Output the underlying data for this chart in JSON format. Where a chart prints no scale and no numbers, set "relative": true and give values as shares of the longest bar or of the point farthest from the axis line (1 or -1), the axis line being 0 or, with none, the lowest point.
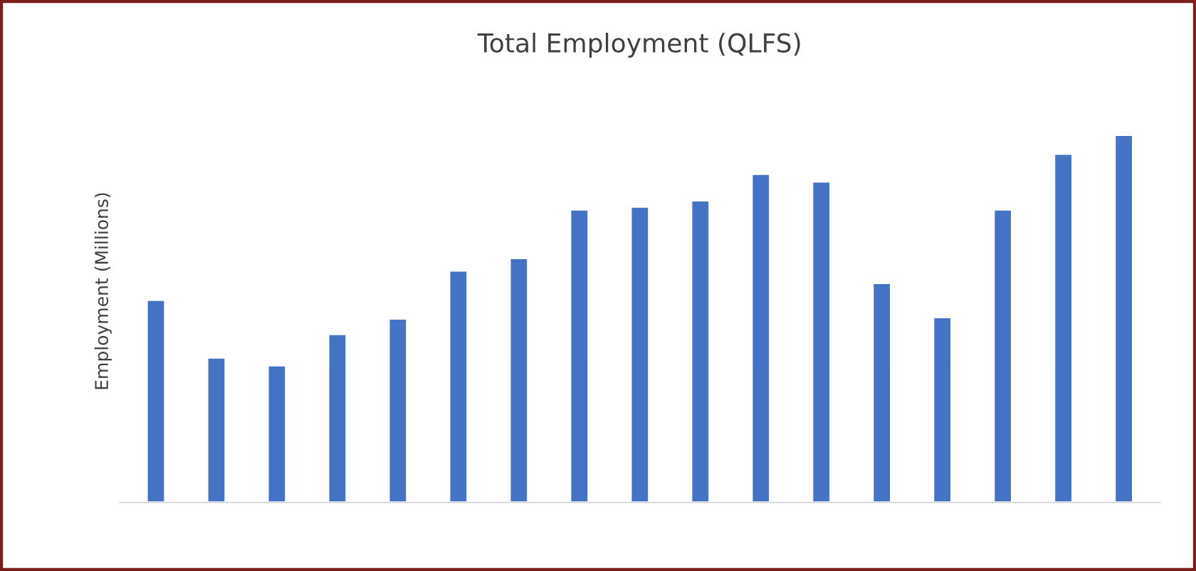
{
  "chart_data": {
    "type": "bar",
    "title": "Total Employment (QLFS)",
    "ylabel": "Employment (Millions)",
    "relative": true,
    "categories": [
      null,
      null,
      null,
      null,
      null,
      null,
      null,
      null,
      null,
      null,
      null,
      null,
      null,
      null,
      null,
      null,
      null
    ],
    "values": [
      0.551,
      0.394,
      0.373,
      0.458,
      0.5,
      0.631,
      0.665,
      0.797,
      0.805,
      0.822,
      0.894,
      0.873,
      0.597,
      0.504,
      0.797,
      0.949,
      1
    ],
    "color": "#4472c4"
  }
}
